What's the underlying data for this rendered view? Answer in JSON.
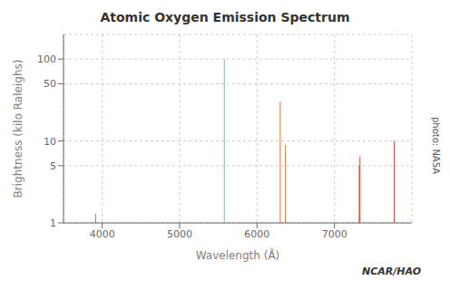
{
  "chart_data": {
    "type": "bar",
    "title": "Atomic Oxygen Emission Spectrum",
    "x_label": "Wavelength (Å)",
    "y_label": "Brightness (kilo Raleighs)",
    "x": [
      3914,
      5577,
      6300,
      6364,
      7320,
      7330,
      7774
    ],
    "values": [
      1.3,
      100,
      30,
      9.0,
      5.0,
      6.5,
      10
    ],
    "colors": [
      "#3355ff",
      "#00ee00",
      "#ff4400",
      "#ff4400",
      "#cc2200",
      "#cc2200",
      "#aa1100"
    ],
    "xlim": [
      3500,
      8000
    ],
    "xticks": [
      4000,
      5000,
      6000,
      7000
    ],
    "ylim": [
      1,
      200
    ],
    "yticks": [
      1,
      5,
      10,
      50,
      100
    ],
    "log": "y",
    "grid": true,
    "annotations": [
      "photo: NASA",
      "NCAR/HAO"
    ]
  }
}
